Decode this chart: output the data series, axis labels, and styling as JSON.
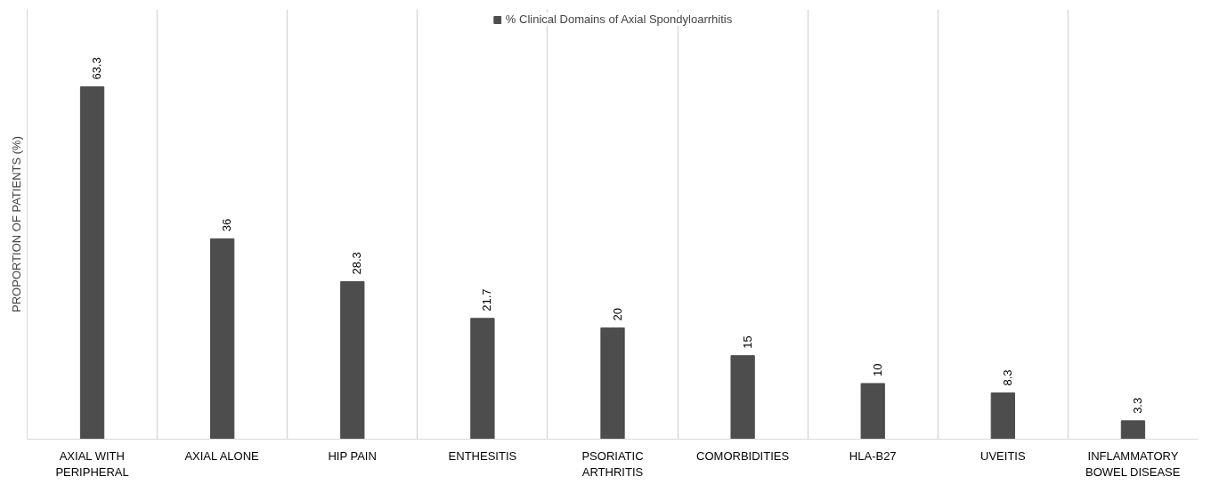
{
  "chart_data": {
    "type": "bar",
    "ylabel": "PROPORTION OF PATIENTS (%)",
    "categories": [
      "AXIAL WITH PERIPHERAL",
      "AXIAL ALONE",
      "HIP PAIN",
      "ENTHESITIS",
      "PSORIATIC ARTHRITIS",
      "COMORBIDITIES",
      "HLA-B27",
      "UVEITIS",
      "INFLAMMATORY BOWEL DISEASE"
    ],
    "series": [
      {
        "name": "% Clinical Domains of Axial Spondyloarrhitis",
        "color": "#4d4d4d",
        "values": [
          63.3,
          36,
          28.3,
          21.7,
          20,
          15,
          10,
          8.3,
          3.3
        ]
      }
    ],
    "data_labels": true,
    "grid": "x",
    "legend": "top",
    "tick_labels": "x"
  }
}
